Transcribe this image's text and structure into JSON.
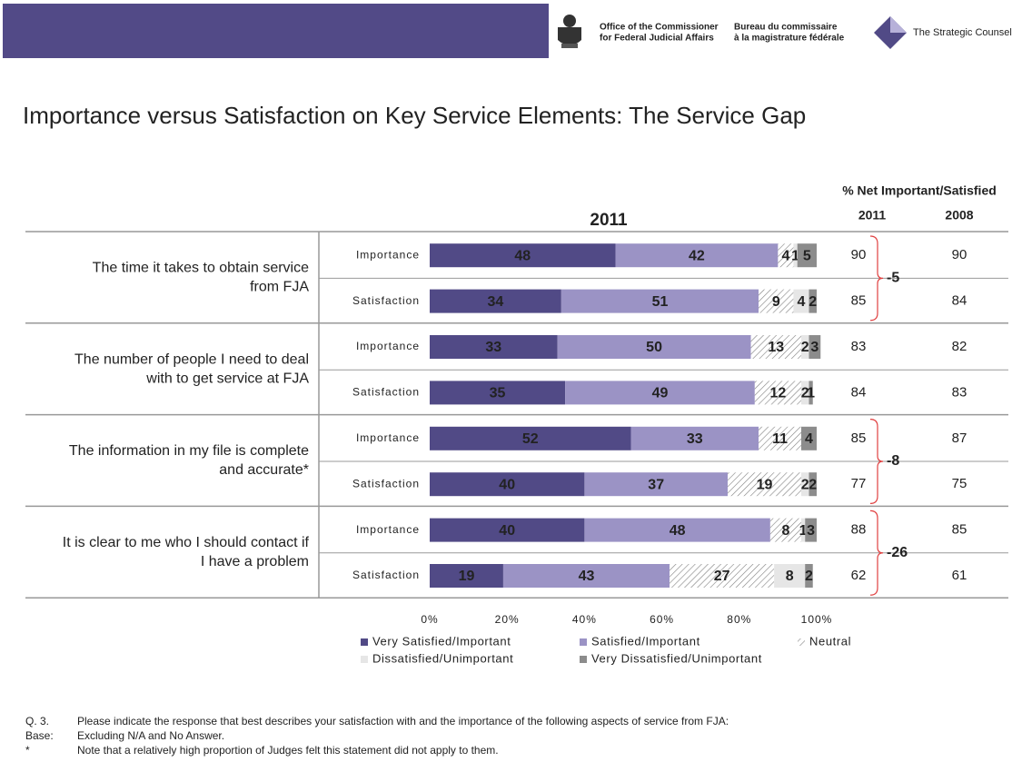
{
  "header": {
    "office_en": [
      "Office of the Commissioner",
      "for Federal Judicial Affairs"
    ],
    "office_fr": [
      "Bureau du commissaire",
      "à la magistrature fédérale"
    ],
    "company": "The Strategic Counsel"
  },
  "title": "Importance versus Satisfaction on Key Service Elements: The Service Gap",
  "chart_data": {
    "type": "stacked-bar-horizontal",
    "subtitle": "2011",
    "categories": [
      "Importance",
      "Satisfaction",
      "Importance",
      "Satisfaction",
      "Importance",
      "Satisfaction",
      "Importance",
      "Satisfaction"
    ],
    "group_labels": [
      [
        "The time it takes to obtain service",
        "from FJA"
      ],
      [
        "The number of people I need to deal",
        "with to get service at FJA"
      ],
      [
        "The information in my file is complete",
        "and accurate*"
      ],
      [
        "It is clear to me who I should contact if",
        "I have a problem"
      ]
    ],
    "series": [
      {
        "name": "Very Satisfied/Important",
        "color": "#514a86",
        "values": [
          48,
          34,
          33,
          35,
          52,
          40,
          40,
          19
        ]
      },
      {
        "name": "Satisfied/Important",
        "color": "#9b93c5",
        "values": [
          42,
          51,
          50,
          49,
          33,
          37,
          48,
          43
        ]
      },
      {
        "name": "Neutral",
        "color": "#808080",
        "pattern": "hatch",
        "values": [
          4,
          9,
          13,
          12,
          11,
          19,
          8,
          27
        ]
      },
      {
        "name": "Dissatisfied/Unimportant",
        "color": "#e6e6e6",
        "values": [
          1,
          4,
          2,
          2,
          0,
          2,
          1,
          8
        ]
      },
      {
        "name": "Very Dissatisfied/Unimportant",
        "color": "#8c8c8c",
        "values": [
          5,
          2,
          3,
          1,
          4,
          2,
          3,
          2
        ]
      }
    ],
    "xlim": [
      0,
      100
    ],
    "xticks": [
      {
        "value": 0,
        "label": "0%"
      },
      {
        "value": 20,
        "label": "20%"
      },
      {
        "value": 40,
        "label": "40%"
      },
      {
        "value": 60,
        "label": "60%"
      },
      {
        "value": 80,
        "label": "80%"
      },
      {
        "value": 100,
        "label": "100%"
      }
    ],
    "net_header": "% Net Important/Satisfied",
    "net_years": [
      "2011",
      "2008"
    ],
    "net_2011": [
      90,
      85,
      83,
      84,
      85,
      77,
      88,
      62
    ],
    "net_2008": [
      90,
      84,
      82,
      83,
      87,
      75,
      85,
      61
    ],
    "gaps": [
      -5,
      null,
      -8,
      -26
    ]
  },
  "footnotes": [
    {
      "marker": "Q. 3.",
      "text": "Please indicate the response that best describes your satisfaction with and the importance of the following aspects of service from FJA:"
    },
    {
      "marker": "Base:",
      "text": "Excluding N/A and No Answer."
    },
    {
      "marker": "*",
      "text": "Note that a relatively high proportion of Judges felt this statement did not apply to them."
    }
  ]
}
